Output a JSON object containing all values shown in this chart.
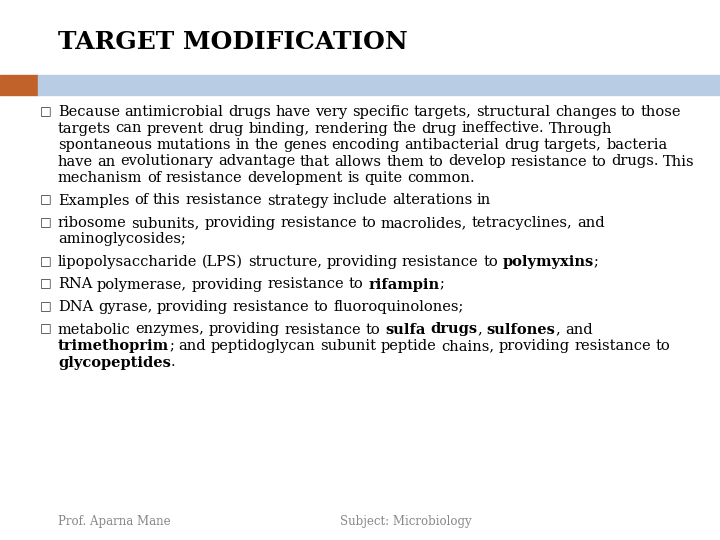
{
  "title": "TARGET MODIFICATION",
  "title_fontsize": 18,
  "title_color": "#000000",
  "title_font": "DejaVu Serif",
  "bg_color": "#ffffff",
  "header_bar_color": "#b8cce4",
  "header_accent_color": "#c0622a",
  "body_fontsize": 10.5,
  "body_font": "DejaVu Serif",
  "footer_left": "Prof. Aparna Mane",
  "footer_right": "Subject: Microbiology",
  "footer_fontsize": 8.5,
  "bullet_char": "□",
  "bullets": [
    {
      "parts": [
        {
          "text": "Because antimicrobial drugs have very specific targets, structural changes to those targets can prevent drug binding, rendering the drug ineffective. Through spontaneous mutations in the genes encoding antibacterial drug targets, bacteria have an evolutionary advantage that allows them to develop resistance to drugs. This mechanism of resistance development is quite common.",
          "bold": false
        }
      ]
    },
    {
      "parts": [
        {
          "text": "Examples of this resistance strategy include alterations in",
          "bold": false
        }
      ]
    },
    {
      "parts": [
        {
          "text": "ribosome subunits, providing resistance to macrolides, tetracyclines, and aminoglycosides;",
          "bold": false
        }
      ]
    },
    {
      "parts": [
        {
          "text": "lipopolysaccharide (LPS) structure, providing resistance to ",
          "bold": false
        },
        {
          "text": "polymyxins",
          "bold": true
        },
        {
          "text": ";",
          "bold": false
        }
      ]
    },
    {
      "parts": [
        {
          "text": "RNA polymerase, providing resistance to ",
          "bold": false
        },
        {
          "text": "rifampin",
          "bold": true
        },
        {
          "text": ";",
          "bold": false
        }
      ]
    },
    {
      "parts": [
        {
          "text": "DNA gyrase, providing resistance to fluoroquinolones;",
          "bold": false
        }
      ]
    },
    {
      "parts": [
        {
          "text": "metabolic enzymes, providing resistance to ",
          "bold": false
        },
        {
          "text": "sulfa drugs",
          "bold": true
        },
        {
          "text": ", ",
          "bold": false
        },
        {
          "text": "sulfones",
          "bold": true
        },
        {
          "text": ", and ",
          "bold": false
        },
        {
          "text": "trimethoprim",
          "bold": true
        },
        {
          "text": "; and peptidoglycan subunit peptide chains, providing resistance to ",
          "bold": false
        },
        {
          "text": "glycopeptides",
          "bold": true
        },
        {
          "text": ".",
          "bold": false
        }
      ]
    }
  ]
}
